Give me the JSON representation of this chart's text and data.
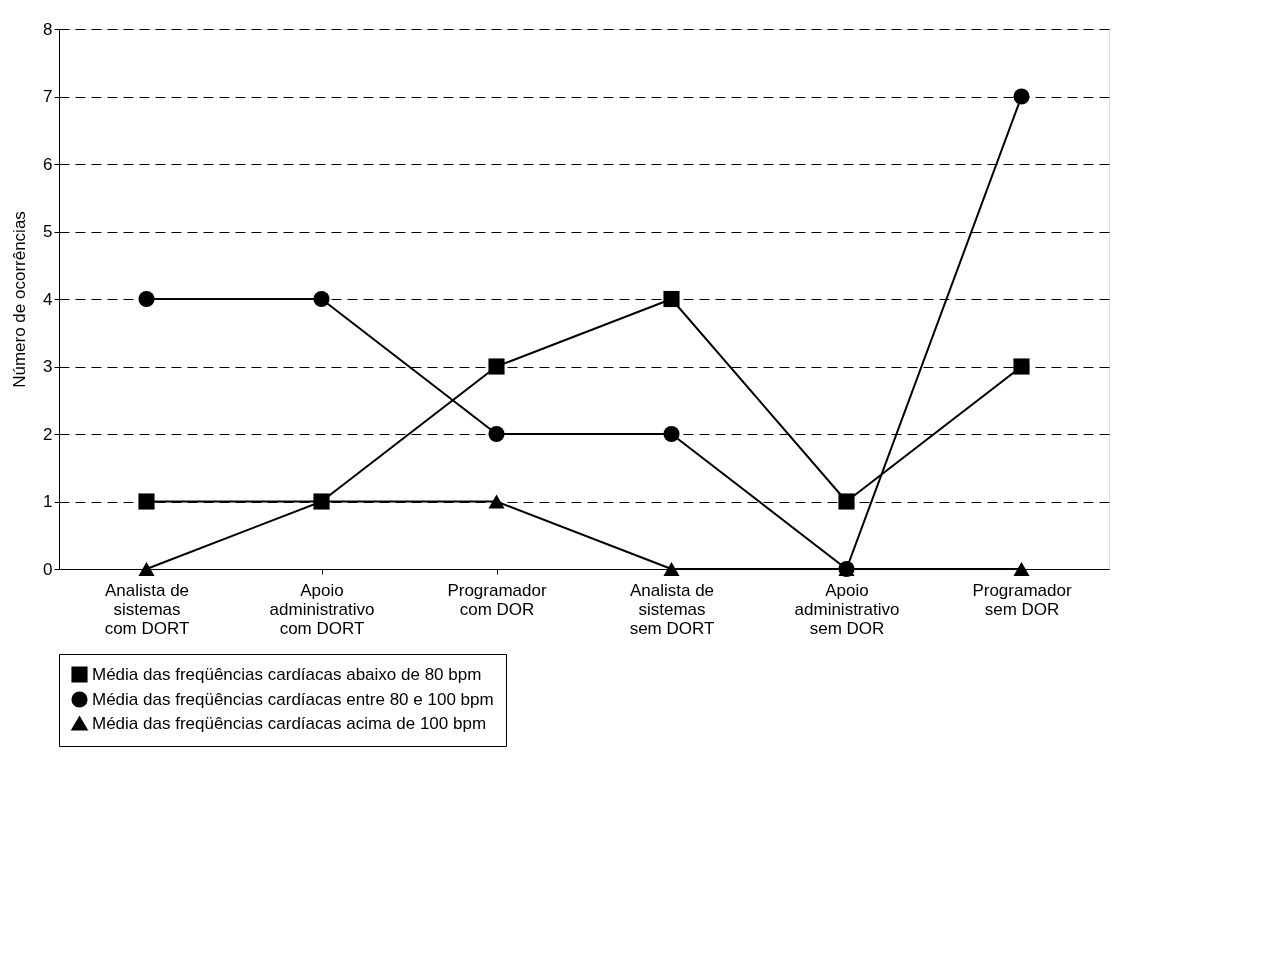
{
  "chart_data": {
    "type": "line",
    "ylabel": "Número de ocorrências",
    "categories": [
      "Analista de\nsistemas\ncom DORT",
      "Apoio\nadministrativo\ncom DORT",
      "Programador\ncom DOR",
      "Analista de\nsistemas\nsem DORT",
      "Apoio\nadministrativo\nsem DOR",
      "Programador\nsem DOR"
    ],
    "series": [
      {
        "name": "Média das freqüências cardíacas abaixo de 80 bpm",
        "color": "#000000",
        "marker": "square",
        "values": [
          1,
          1,
          3,
          4,
          1,
          3
        ]
      },
      {
        "name": "Média das freqüências cardíacas entre 80 e 100 bpm",
        "color": "#000000",
        "marker": "circle",
        "values": [
          4,
          4,
          2,
          2,
          0,
          7
        ]
      },
      {
        "name": "Média das freqüências cardíacas acima de 100 bpm",
        "color": "#000000",
        "marker": "triangle",
        "values": [
          0,
          1,
          1,
          0,
          0,
          0
        ]
      }
    ],
    "ylim": [
      0,
      8
    ],
    "yticks": [
      0,
      1,
      2,
      3,
      4,
      5,
      6,
      7,
      8
    ],
    "grid": "y",
    "legend": "bottom",
    "line_style": "solid"
  }
}
